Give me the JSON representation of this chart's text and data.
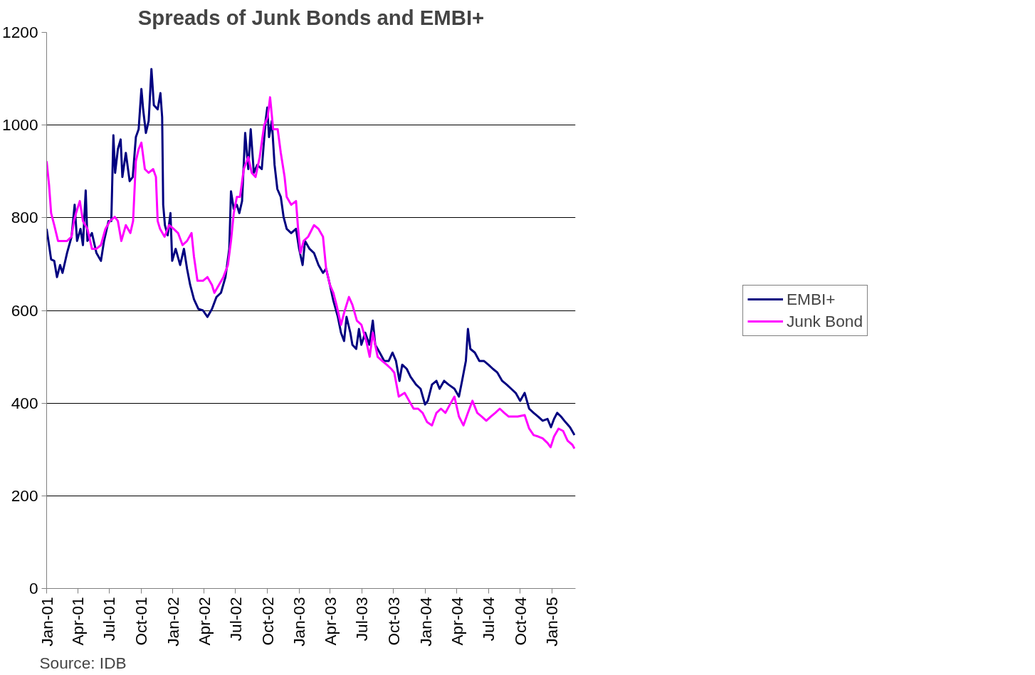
{
  "chart_data": {
    "type": "line",
    "title": "Spreads of Junk Bonds and EMBI+",
    "annotations": [
      "Source: IDB"
    ],
    "xlim": [
      "2001-01-01",
      "2005-03-10"
    ],
    "ylim": [
      0,
      1200
    ],
    "yticks": [
      0,
      200,
      400,
      600,
      800,
      1000,
      1200
    ],
    "xticks": [
      {
        "value": "2001-01-01",
        "label": "Jan-01"
      },
      {
        "value": "2001-04-01",
        "label": "Apr-01"
      },
      {
        "value": "2001-07-01",
        "label": "Jul-01"
      },
      {
        "value": "2001-10-01",
        "label": "Oct-01"
      },
      {
        "value": "2002-01-01",
        "label": "Jan-02"
      },
      {
        "value": "2002-04-01",
        "label": "Apr-02"
      },
      {
        "value": "2002-07-01",
        "label": "Jul-02"
      },
      {
        "value": "2002-10-01",
        "label": "Oct-02"
      },
      {
        "value": "2003-01-01",
        "label": "Jan-03"
      },
      {
        "value": "2003-04-01",
        "label": "Apr-03"
      },
      {
        "value": "2003-07-01",
        "label": "Jul-03"
      },
      {
        "value": "2003-10-01",
        "label": "Oct-03"
      },
      {
        "value": "2004-01-01",
        "label": "Jan-04"
      },
      {
        "value": "2004-04-01",
        "label": "Apr-04"
      },
      {
        "value": "2004-07-01",
        "label": "Jul-04"
      },
      {
        "value": "2004-10-01",
        "label": "Oct-04"
      },
      {
        "value": "2005-01-01",
        "label": "Jan-05"
      }
    ],
    "grid": "y",
    "legend": "right",
    "marker": "none",
    "line_style": "solid",
    "series": [
      {
        "name": "EMBI+",
        "color": "#000080",
        "x": [
          "2001-01-01",
          "2001-01-08",
          "2001-01-14",
          "2001-01-23",
          "2001-01-31",
          "2001-02-09",
          "2001-02-16",
          "2001-03-01",
          "2001-03-14",
          "2001-03-23",
          "2001-03-30",
          "2001-04-09",
          "2001-04-16",
          "2001-04-24",
          "2001-04-29",
          "2001-05-12",
          "2001-05-25",
          "2001-06-07",
          "2001-06-16",
          "2001-06-29",
          "2001-07-07",
          "2001-07-13",
          "2001-07-18",
          "2001-07-26",
          "2001-08-03",
          "2001-08-08",
          "2001-08-18",
          "2001-08-29",
          "2001-09-07",
          "2001-09-16",
          "2001-09-24",
          "2001-10-02",
          "2001-10-07",
          "2001-10-15",
          "2001-10-23",
          "2001-10-31",
          "2001-11-07",
          "2001-11-18",
          "2001-11-26",
          "2001-12-01",
          "2001-12-04",
          "2001-12-09",
          "2001-12-17",
          "2001-12-25",
          "2001-12-30",
          "2002-01-09",
          "2002-01-22",
          "2002-02-02",
          "2002-02-11",
          "2002-02-20",
          "2002-03-03",
          "2002-03-16",
          "2002-03-29",
          "2002-04-11",
          "2002-04-24",
          "2002-05-07",
          "2002-05-20",
          "2002-06-02",
          "2002-06-13",
          "2002-06-18",
          "2002-06-26",
          "2002-07-05",
          "2002-07-12",
          "2002-07-20",
          "2002-07-29",
          "2002-08-07",
          "2002-08-14",
          "2002-08-23",
          "2002-09-02",
          "2002-09-15",
          "2002-09-26",
          "2002-10-01",
          "2002-10-06",
          "2002-10-14",
          "2002-10-22",
          "2002-10-30",
          "2002-11-09",
          "2002-11-17",
          "2002-11-26",
          "2002-12-09",
          "2002-12-23",
          "2003-01-01",
          "2003-01-11",
          "2003-01-18",
          "2003-01-31",
          "2003-02-13",
          "2003-02-26",
          "2003-03-11",
          "2003-03-20",
          "2003-03-31",
          "2003-04-10",
          "2003-04-23",
          "2003-05-02",
          "2003-05-11",
          "2003-05-18",
          "2003-05-29",
          "2003-06-04",
          "2003-06-15",
          "2003-06-23",
          "2003-06-30",
          "2003-07-11",
          "2003-07-23",
          "2003-08-02",
          "2003-08-09",
          "2003-08-22",
          "2003-09-04",
          "2003-09-17",
          "2003-09-28",
          "2003-10-08",
          "2003-10-18",
          "2003-10-26",
          "2003-11-08",
          "2003-11-19",
          "2003-12-05",
          "2003-12-18",
          "2003-12-31",
          "2004-01-08",
          "2004-01-20",
          "2004-02-02",
          "2004-02-11",
          "2004-02-24",
          "2004-03-08",
          "2004-03-25",
          "2004-04-07",
          "2004-04-16",
          "2004-04-27",
          "2004-05-03",
          "2004-05-10",
          "2004-05-23",
          "2004-06-05",
          "2004-06-18",
          "2004-07-01",
          "2004-07-14",
          "2004-07-27",
          "2004-08-10",
          "2004-08-23",
          "2004-09-05",
          "2004-09-18",
          "2004-10-01",
          "2004-10-14",
          "2004-10-27",
          "2004-11-09",
          "2004-11-22",
          "2004-12-05",
          "2004-12-19",
          "2004-12-29",
          "2005-01-07",
          "2005-01-16",
          "2005-01-27",
          "2005-02-09",
          "2005-02-22",
          "2005-03-07"
        ],
        "values": [
          776,
          741,
          710,
          707,
          672,
          698,
          681,
          724,
          759,
          828,
          750,
          776,
          741,
          859,
          750,
          767,
          724,
          707,
          750,
          793,
          793,
          978,
          897,
          948,
          969,
          888,
          940,
          879,
          888,
          974,
          991,
          1078,
          1034,
          983,
          1009,
          1121,
          1043,
          1034,
          1069,
          1017,
          828,
          784,
          762,
          810,
          707,
          733,
          698,
          733,
          690,
          655,
          624,
          603,
          600,
          586,
          603,
          629,
          638,
          672,
          733,
          857,
          819,
          828,
          810,
          836,
          983,
          905,
          991,
          897,
          914,
          905,
          1009,
          1038,
          974,
          1009,
          914,
          862,
          845,
          802,
          776,
          767,
          776,
          733,
          698,
          750,
          733,
          724,
          698,
          681,
          690,
          655,
          621,
          586,
          552,
          534,
          586,
          552,
          526,
          517,
          560,
          526,
          552,
          526,
          578,
          526,
          509,
          491,
          491,
          509,
          491,
          448,
          483,
          474,
          457,
          440,
          431,
          397,
          405,
          440,
          448,
          431,
          448,
          440,
          431,
          414,
          448,
          491,
          560,
          517,
          509,
          491,
          491,
          483,
          474,
          466,
          448,
          440,
          431,
          422,
          405,
          422,
          388,
          379,
          371,
          362,
          366,
          348,
          366,
          379,
          371,
          359,
          348,
          331
        ]
      },
      {
        "name": "Junk Bond",
        "color": "#ff00ff",
        "x": [
          "2001-01-01",
          "2001-01-08",
          "2001-01-14",
          "2001-01-23",
          "2001-02-03",
          "2001-02-16",
          "2001-03-01",
          "2001-03-14",
          "2001-03-21",
          "2001-03-27",
          "2001-04-07",
          "2001-04-16",
          "2001-04-29",
          "2001-05-12",
          "2001-05-25",
          "2001-06-07",
          "2001-06-20",
          "2001-07-03",
          "2001-07-17",
          "2001-07-26",
          "2001-08-05",
          "2001-08-18",
          "2001-08-31",
          "2001-09-08",
          "2001-09-16",
          "2001-09-24",
          "2001-10-02",
          "2001-10-12",
          "2001-10-23",
          "2001-11-05",
          "2001-11-13",
          "2001-11-18",
          "2001-11-25",
          "2001-12-08",
          "2001-12-21",
          "2002-01-03",
          "2002-01-16",
          "2002-01-29",
          "2002-02-11",
          "2002-02-24",
          "2002-03-03",
          "2002-03-13",
          "2002-03-29",
          "2002-04-11",
          "2002-04-24",
          "2002-05-01",
          "2002-05-14",
          "2002-05-27",
          "2002-06-09",
          "2002-06-18",
          "2002-06-26",
          "2002-07-05",
          "2002-07-14",
          "2002-07-25",
          "2002-08-07",
          "2002-08-17",
          "2002-08-28",
          "2002-09-09",
          "2002-09-22",
          "2002-10-02",
          "2002-10-09",
          "2002-10-18",
          "2002-10-31",
          "2002-11-09",
          "2002-11-20",
          "2002-11-26",
          "2002-12-09",
          "2002-12-23",
          "2002-12-29",
          "2003-01-05",
          "2003-01-14",
          "2003-01-27",
          "2003-02-13",
          "2003-02-26",
          "2003-03-11",
          "2003-03-20",
          "2003-03-31",
          "2003-04-10",
          "2003-04-19",
          "2003-05-02",
          "2003-05-11",
          "2003-05-25",
          "2003-06-04",
          "2003-06-17",
          "2003-06-30",
          "2003-07-14",
          "2003-07-24",
          "2003-08-02",
          "2003-08-16",
          "2003-08-29",
          "2003-09-11",
          "2003-09-24",
          "2003-10-03",
          "2003-10-16",
          "2003-11-02",
          "2003-11-15",
          "2003-11-28",
          "2003-12-11",
          "2003-12-24",
          "2004-01-06",
          "2004-01-20",
          "2004-02-02",
          "2004-02-15",
          "2004-02-28",
          "2004-03-12",
          "2004-03-25",
          "2004-04-07",
          "2004-04-20",
          "2004-05-03",
          "2004-05-16",
          "2004-05-30",
          "2004-06-12",
          "2004-06-25",
          "2004-07-08",
          "2004-07-21",
          "2004-08-03",
          "2004-08-16",
          "2004-08-29",
          "2004-09-11",
          "2004-09-24",
          "2004-10-14",
          "2004-10-27",
          "2004-11-09",
          "2004-11-22",
          "2004-12-05",
          "2004-12-19",
          "2004-12-28",
          "2005-01-07",
          "2005-01-20",
          "2005-02-02",
          "2005-02-15",
          "2005-03-01",
          "2005-03-07"
        ],
        "values": [
          922,
          871,
          810,
          784,
          750,
          750,
          750,
          759,
          793,
          810,
          836,
          793,
          776,
          733,
          733,
          741,
          776,
          793,
          802,
          793,
          750,
          784,
          767,
          793,
          922,
          948,
          962,
          905,
          897,
          905,
          888,
          793,
          776,
          759,
          784,
          776,
          767,
          741,
          750,
          767,
          716,
          664,
          664,
          672,
          655,
          638,
          655,
          672,
          698,
          750,
          810,
          845,
          845,
          905,
          931,
          897,
          888,
          931,
          1000,
          1017,
          1060,
          991,
          991,
          940,
          888,
          845,
          828,
          836,
          776,
          724,
          750,
          759,
          784,
          776,
          759,
          690,
          655,
          638,
          612,
          569,
          595,
          629,
          612,
          578,
          569,
          534,
          500,
          552,
          500,
          491,
          483,
          474,
          466,
          414,
          422,
          405,
          388,
          388,
          379,
          359,
          352,
          379,
          388,
          379,
          397,
          414,
          371,
          352,
          379,
          405,
          379,
          371,
          362,
          371,
          379,
          388,
          379,
          371,
          371,
          371,
          374,
          345,
          331,
          328,
          324,
          314,
          305,
          328,
          345,
          340,
          319,
          310,
          302
        ]
      }
    ]
  }
}
